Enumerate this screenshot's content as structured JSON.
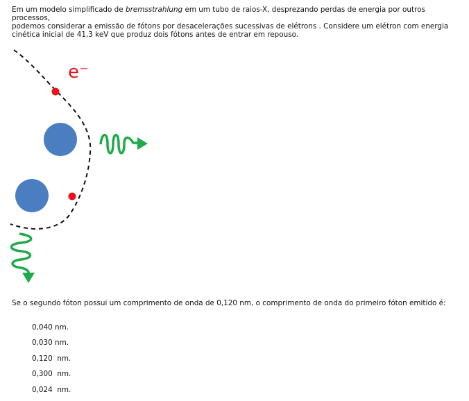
{
  "intro": {
    "part1": "Em um modelo simplificado de ",
    "term": "bremsstrahlung",
    "part2": " em um tubo de raios-X, desprezando perdas de energia por outros processos,",
    "line2": "podemos considerar a emissão de fótons por desacelerações sucessivas de elétrons . Considere um elétron com energia",
    "line3": "cinética inicial de 41,3 keV que produz dois fótons antes de entrar em repouso."
  },
  "figure": {
    "electron_label": "e⁻",
    "colors": {
      "electron": "#e8141b",
      "nucleus": "#4a7ec1",
      "photon": "#1faa4b",
      "path": "#111111"
    }
  },
  "question": "Se o segundo fóton possui um comprimento de onda de 0,120 nm, o comprimento de onda do primeiro fóton emitido é:",
  "options": [
    "0,040 nm.",
    "0,030 nm.",
    "0,120  nm.",
    "0,300  nm.",
    "0,024  nm."
  ]
}
